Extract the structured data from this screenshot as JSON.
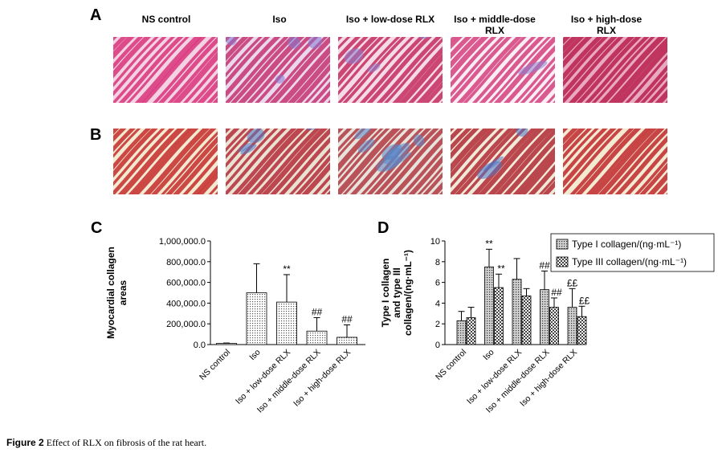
{
  "panels": {
    "a": "A",
    "b": "B",
    "c": "C",
    "d": "D"
  },
  "columns": [
    "NS control",
    "Iso",
    "Iso + low-dose RLX",
    "Iso + middle-dose RLX",
    "Iso + high-dose RLX"
  ],
  "micrographs": {
    "row_a": [
      {
        "base": "#f3d3e3",
        "fiber": "#d8327a",
        "blue": "#7d70c8",
        "blue_amount": 0.0
      },
      {
        "base": "#ead8ee",
        "fiber": "#c6346f",
        "blue": "#8579d1",
        "blue_amount": 0.5
      },
      {
        "base": "#f4dbe7",
        "fiber": "#c42b5e",
        "blue": "#8a7fd0",
        "blue_amount": 0.3
      },
      {
        "base": "#faeef4",
        "fiber": "#d33f7e",
        "blue": "#8a7fd0",
        "blue_amount": 0.2
      },
      {
        "base": "#e9a9c1",
        "fiber": "#b8204f",
        "blue": "#8a7fd0",
        "blue_amount": 0.05
      }
    ],
    "row_b": [
      {
        "base": "#f3ead2",
        "fiber": "#c42b2b",
        "blue": "#5b7fc8",
        "blue_amount": 0.0
      },
      {
        "base": "#e9e3d3",
        "fiber": "#b52c3a",
        "blue": "#4f78c9",
        "blue_amount": 0.5
      },
      {
        "base": "#e6e4dc",
        "fiber": "#b23a42",
        "blue": "#5a86c8",
        "blue_amount": 0.55
      },
      {
        "base": "#f0ead8",
        "fiber": "#b02a35",
        "blue": "#4d75c9",
        "blue_amount": 0.3
      },
      {
        "base": "#f3ead2",
        "fiber": "#c0282e",
        "blue": "#6a8bd0",
        "blue_amount": 0.08
      }
    ]
  },
  "chart_data": [
    {
      "type": "bar",
      "panel": "C",
      "ylabel": "Myocardial collagen areas",
      "ylim": [
        0,
        1000000
      ],
      "yticks": [
        "0.0",
        "200,000.0",
        "400,000.0",
        "600,000.0",
        "800,000.0",
        "1,000,000.0"
      ],
      "categories": [
        "NS control",
        "Iso",
        "Iso + low-dose RLX",
        "Iso + middle-dose RLX",
        "Iso + high-dose RLX"
      ],
      "values": [
        10000,
        500000,
        410000,
        130000,
        70000
      ],
      "errors": [
        5000,
        280000,
        265000,
        130000,
        120000
      ],
      "annotations": [
        "",
        "",
        "**",
        "##",
        "##"
      ]
    },
    {
      "type": "bar",
      "panel": "D",
      "ylabel": "Type I collagen and type III collagen/(ng·mL⁻¹)",
      "ylim": [
        0,
        10
      ],
      "yticks": [
        "0",
        "2",
        "4",
        "6",
        "8",
        "10"
      ],
      "categories": [
        "NS control",
        "Iso",
        "Iso + low-dose RLX",
        "Iso + middle-dose RLX",
        "Iso + high-dose RLX"
      ],
      "legend_position": "top-right",
      "series": [
        {
          "name": "Type I collagen/(ng·mL⁻¹)",
          "values": [
            2.3,
            7.5,
            6.3,
            5.3,
            3.6
          ],
          "errors": [
            0.9,
            1.7,
            2.0,
            1.8,
            1.8
          ],
          "annotations": [
            "",
            "**",
            "",
            "##",
            "££"
          ]
        },
        {
          "name": "Type III collagen/(ng·mL⁻¹)",
          "values": [
            2.6,
            5.5,
            4.7,
            3.6,
            2.7
          ],
          "errors": [
            1.0,
            1.3,
            0.7,
            0.9,
            1.0
          ],
          "annotations": [
            "",
            "**",
            "",
            "##",
            "££"
          ]
        }
      ]
    }
  ],
  "caption": {
    "label": "Figure 2",
    "text": " Effect of RLX on fibrosis of the rat heart."
  }
}
